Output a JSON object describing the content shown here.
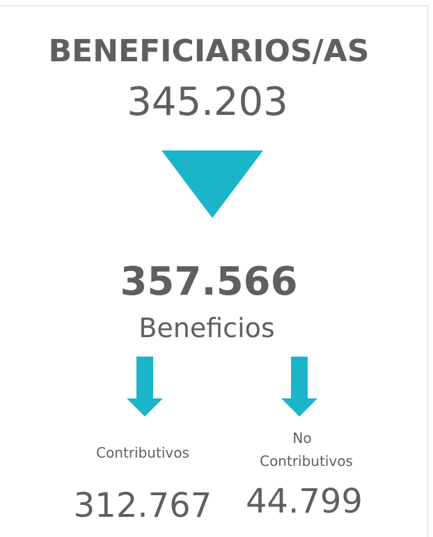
{
  "title": "BENEFICIARIOS/AS",
  "total": "345.203",
  "benefits": {
    "value": "357.566",
    "label": "Beneficios"
  },
  "breakdown": [
    {
      "label": [
        "Contributivos"
      ],
      "value": "312.767"
    },
    {
      "label": [
        "No",
        "Contributivos"
      ],
      "value": "44.799"
    }
  ]
}
